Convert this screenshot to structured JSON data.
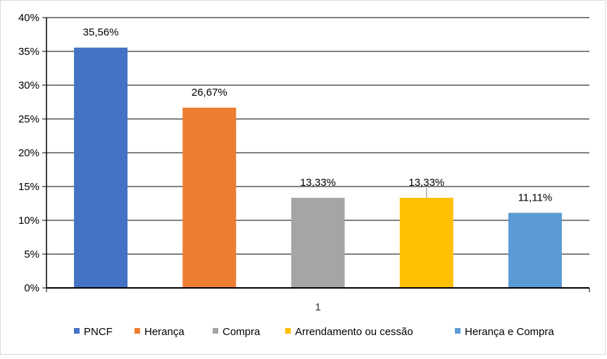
{
  "chart_data": {
    "type": "bar",
    "categories": [
      "1"
    ],
    "series": [
      {
        "name": "PNCF",
        "values": [
          35.56
        ],
        "label": "35,56%",
        "color": "#4472C4"
      },
      {
        "name": "Herança",
        "values": [
          26.67
        ],
        "label": "26,67%",
        "color": "#ED7D31"
      },
      {
        "name": "Compra",
        "values": [
          13.33
        ],
        "label": "13,33%",
        "color": "#A5A5A5"
      },
      {
        "name": "Arrendamento ou cessão",
        "values": [
          13.33
        ],
        "label": "13,33%",
        "color": "#FFC000"
      },
      {
        "name": "Herança e Compra",
        "values": [
          11.11
        ],
        "label": "11,11%",
        "color": "#5B9BD5"
      }
    ],
    "y_ticks": [
      "0%",
      "5%",
      "10%",
      "15%",
      "20%",
      "25%",
      "30%",
      "35%",
      "40%"
    ],
    "ylim": [
      0,
      40
    ],
    "title": "",
    "xlabel": "",
    "ylabel": "",
    "grid": true,
    "legend_position": "bottom"
  }
}
